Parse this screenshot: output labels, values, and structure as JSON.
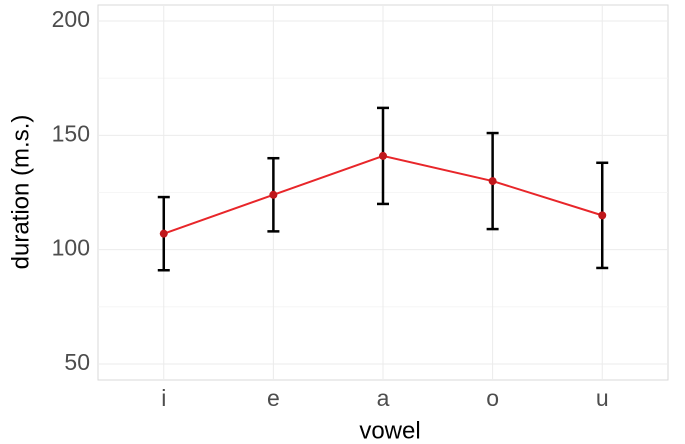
{
  "chart_data": {
    "type": "line",
    "x_label": "vowel",
    "y_label": "duration (m.s.)",
    "categories": [
      "i",
      "e",
      "a",
      "o",
      "u"
    ],
    "values": [
      107,
      124,
      141,
      130,
      115
    ],
    "errors": [
      16,
      16,
      21,
      21,
      23
    ],
    "color": "#e8262a",
    "point_color": "#c0181c",
    "error_color": "#000000",
    "ylim": [
      43,
      207
    ],
    "yticks": [
      50,
      100,
      150,
      200
    ],
    "grid": true
  }
}
